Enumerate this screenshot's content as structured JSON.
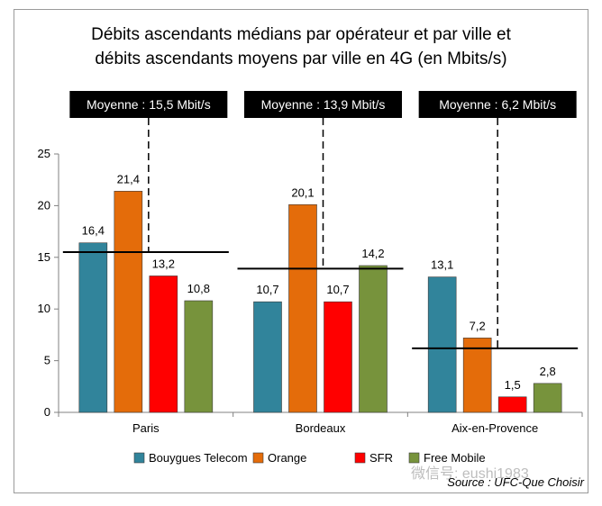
{
  "chart_data": {
    "type": "bar",
    "title": [
      "Débits ascendants médians par opérateur et par ville et",
      "débits ascendants moyens par ville en 4G (en Mbits/s)"
    ],
    "categories": [
      "Paris",
      "Bordeaux",
      "Aix-en-Provence"
    ],
    "series": [
      {
        "name": "Bouygues Telecom",
        "color": "#31849b",
        "values": [
          16.4,
          10.7,
          13.1
        ],
        "labels": [
          "16,4",
          "10,7",
          "13,1"
        ]
      },
      {
        "name": "Orange",
        "color": "#e46c0a",
        "values": [
          21.4,
          20.1,
          7.2
        ],
        "labels": [
          "21,4",
          "20,1",
          "7,2"
        ]
      },
      {
        "name": "SFR",
        "color": "#ff0000",
        "values": [
          13.2,
          10.7,
          1.5
        ],
        "labels": [
          "13,2",
          "10,7",
          "1,5"
        ]
      },
      {
        "name": "Free Mobile",
        "color": "#77933c",
        "values": [
          10.8,
          14.2,
          2.8
        ],
        "labels": [
          "10,8",
          "14,2",
          "2,8"
        ]
      }
    ],
    "averages": [
      {
        "value": 15.5,
        "label": "Moyenne : 15,5 Mbit/s"
      },
      {
        "value": 13.9,
        "label": "Moyenne : 13,9 Mbit/s"
      },
      {
        "value": 6.2,
        "label": "Moyenne : 6,2 Mbit/s"
      }
    ],
    "ylim": [
      0,
      25
    ],
    "yticks": [
      0,
      5,
      10,
      15,
      20,
      25
    ],
    "legend_position": "bottom",
    "source": "Source : UFC-Que Choisir",
    "watermark": "微信号: eushi1983"
  }
}
